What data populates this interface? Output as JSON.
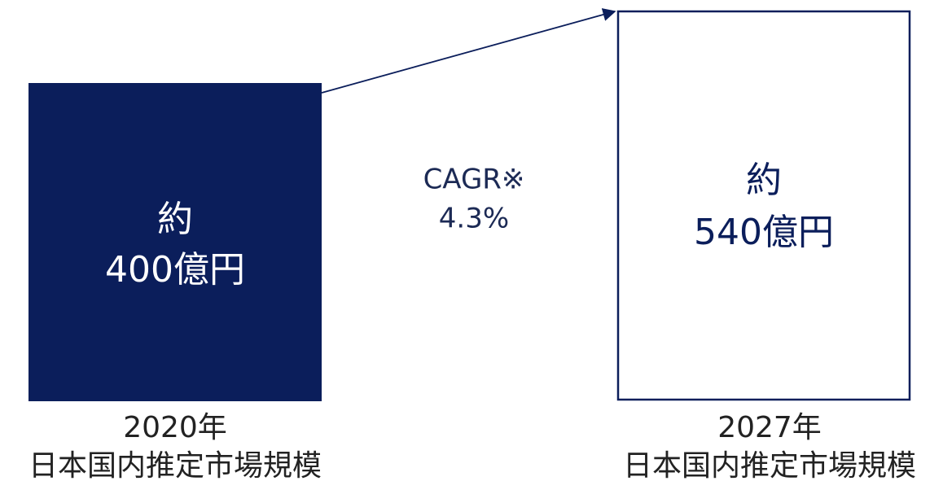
{
  "boxes": [
    {
      "line1": "約",
      "line2": "400億円",
      "caption1": "2020年",
      "caption2": "日本国内推定市場規模"
    },
    {
      "line1": "約",
      "line2": "540億円",
      "caption1": "2027年",
      "caption2": "日本国内推定市場規模"
    }
  ],
  "growth": {
    "label": "CAGR※",
    "value": "4.3%"
  }
}
